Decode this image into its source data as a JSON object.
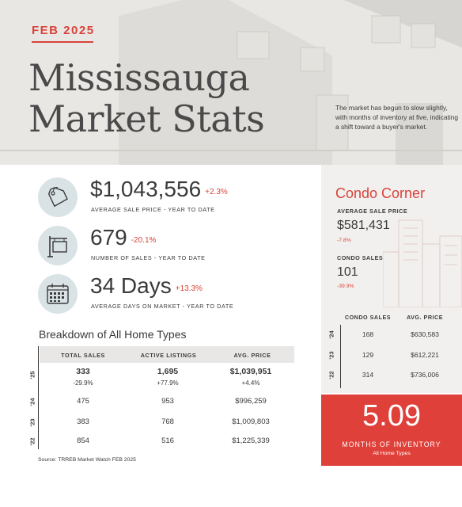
{
  "hero": {
    "month": "FEB 2025",
    "title": "Mississauga\nMarket Stats",
    "note": "The market has begun to slow slightly, with months of inventory at five, indicating a shift toward a buyer's market."
  },
  "stats": [
    {
      "value": "$1,043,556",
      "change": "+2.3%",
      "label": "AVERAGE SALE PRICE - YEAR TO DATE",
      "icon": "price-tag-icon"
    },
    {
      "value": "679",
      "change": "-20.1%",
      "label": "NUMBER OF SALES - YEAR TO DATE",
      "icon": "sold-sign-icon"
    },
    {
      "value": "34 Days",
      "change": "+13.3%",
      "label": "AVERAGE DAYS ON MARKET - YEAR TO DATE",
      "icon": "calendar-icon"
    }
  ],
  "breakdown": {
    "title": "Breakdown of All Home Types",
    "headers": [
      "TOTAL SALES",
      "ACTIVE LISTINGS",
      "AVG. PRICE"
    ],
    "rows": [
      {
        "year": "'25",
        "total_sales": "333",
        "active_listings": "1,695",
        "avg_price": "$1,039,951",
        "sales_change": "-29.9%",
        "listings_change": "+77.9%",
        "price_change": "+4.4%"
      },
      {
        "year": "'24",
        "total_sales": "475",
        "active_listings": "953",
        "avg_price": "$996,259"
      },
      {
        "year": "'23",
        "total_sales": "383",
        "active_listings": "768",
        "avg_price": "$1,009,803"
      },
      {
        "year": "'22",
        "total_sales": "854",
        "active_listings": "516",
        "avg_price": "$1,225,339"
      }
    ]
  },
  "source": "Source: TRREB Market Watch FEB 2025",
  "condo": {
    "title": "Condo Corner",
    "avg_price_label": "AVERAGE SALE PRICE",
    "avg_price": "$581,431",
    "avg_price_change": "-7.8%",
    "sales_label": "CONDO SALES",
    "sales": "101",
    "sales_change": "-39.9%",
    "headers": [
      "CONDO SALES",
      "AVG. PRICE"
    ],
    "rows": [
      {
        "year": "'24",
        "sales": "168",
        "price": "$630,583"
      },
      {
        "year": "'23",
        "sales": "129",
        "price": "$612,221"
      },
      {
        "year": "'22",
        "sales": "314",
        "price": "$736,006"
      }
    ]
  },
  "inventory": {
    "value": "5.09",
    "label": "MONTHS OF INVENTORY",
    "sub": "All Home Types"
  },
  "colors": {
    "accent": "#d8433a",
    "inventory_bg": "#e0403a",
    "icon_circle": "#d9e3e6",
    "panel_bg": "#f2f0ee"
  }
}
